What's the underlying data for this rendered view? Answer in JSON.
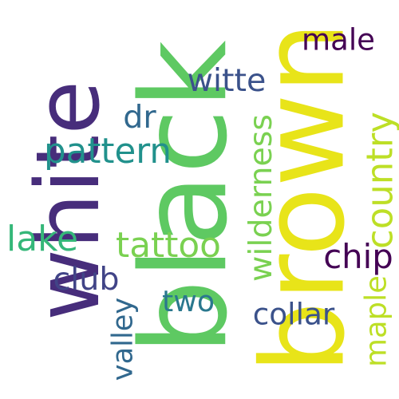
{
  "words": [
    {
      "text": "white",
      "color": "#472d7b"
    },
    {
      "text": "black",
      "color": "#5ec962"
    },
    {
      "text": "brown",
      "color": "#e8e419"
    },
    {
      "text": "male",
      "color": "#440154"
    },
    {
      "text": "witte",
      "color": "#3b528b"
    },
    {
      "text": "dr",
      "color": "#31688e"
    },
    {
      "text": "pattern",
      "color": "#21918c"
    },
    {
      "text": "wilderness",
      "color": "#7ad151"
    },
    {
      "text": "country",
      "color": "#bddf26"
    },
    {
      "text": "lake",
      "color": "#35b779"
    },
    {
      "text": "tattoo",
      "color": "#7ad151"
    },
    {
      "text": "chip",
      "color": "#440154"
    },
    {
      "text": "club",
      "color": "#414487"
    },
    {
      "text": "two",
      "color": "#2a788e"
    },
    {
      "text": "collar",
      "color": "#3b528b"
    },
    {
      "text": "valley",
      "color": "#31688e"
    },
    {
      "text": "maple",
      "color": "#bddf26"
    }
  ]
}
